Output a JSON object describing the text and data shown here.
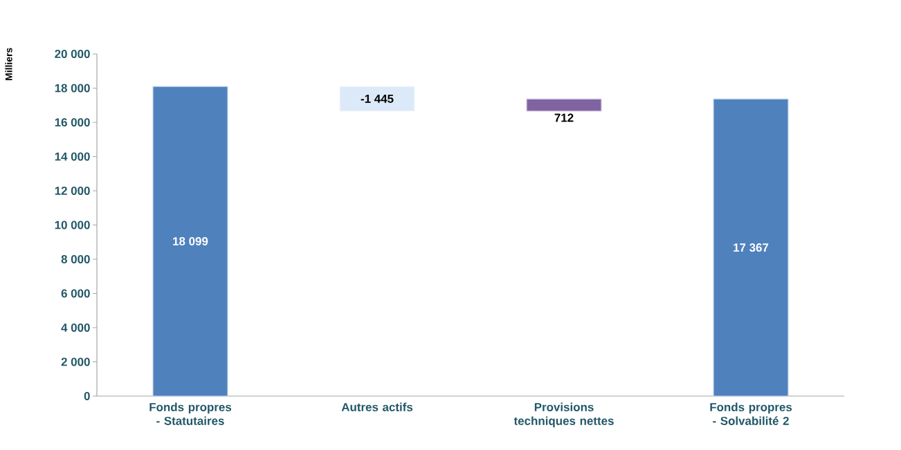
{
  "chart_data": {
    "type": "bar",
    "ylabel": "Milliers",
    "categories": [
      "Fonds propres - Statutaires",
      "Autres actifs",
      "Provisions techniques nettes",
      "Fonds propres - Solvabilité 2"
    ],
    "values": [
      18099,
      -1445,
      712,
      17367
    ],
    "base": [
      0,
      18099,
      16654,
      0
    ],
    "colors": [
      "#4f81bd",
      "#dce9f8",
      "#8064a2",
      "#4f81bd"
    ],
    "value_labels": [
      "18 099",
      "-1 445",
      "712",
      "17 367"
    ],
    "ylim": [
      0,
      20000
    ],
    "yticks": [
      {
        "value": 0,
        "label": "0"
      },
      {
        "value": 2000,
        "label": "2 000"
      },
      {
        "value": 4000,
        "label": "4 000"
      },
      {
        "value": 6000,
        "label": "6 000"
      },
      {
        "value": 8000,
        "label": "8 000"
      },
      {
        "value": 10000,
        "label": "10 000"
      },
      {
        "value": 12000,
        "label": "12 000"
      },
      {
        "value": 14000,
        "label": "14 000"
      },
      {
        "value": 16000,
        "label": "16 000"
      },
      {
        "value": 18000,
        "label": "18 000"
      },
      {
        "value": 20000,
        "label": "20 000"
      }
    ]
  }
}
